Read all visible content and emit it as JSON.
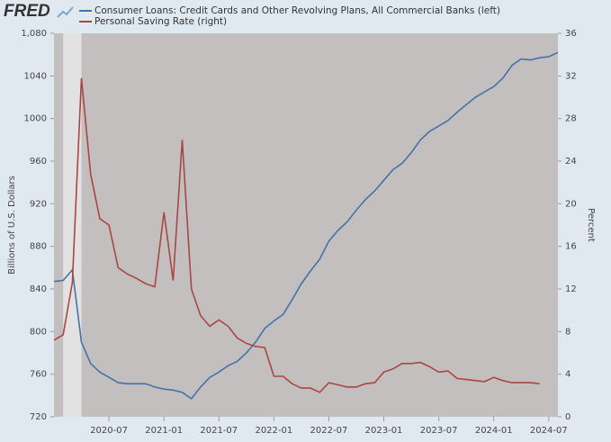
{
  "logo": "FRED",
  "chart_data": {
    "type": "line",
    "y_label": "Billions of U.S. Dollars",
    "y2_label": "Percent",
    "x": [
      "2020-01",
      "2020-02",
      "2020-03",
      "2020-04",
      "2020-05",
      "2020-06",
      "2020-07",
      "2020-08",
      "2020-09",
      "2020-10",
      "2020-11",
      "2020-12",
      "2021-01",
      "2021-02",
      "2021-03",
      "2021-04",
      "2021-05",
      "2021-06",
      "2021-07",
      "2021-08",
      "2021-09",
      "2021-10",
      "2021-11",
      "2021-12",
      "2022-01",
      "2022-02",
      "2022-03",
      "2022-04",
      "2022-05",
      "2022-06",
      "2022-07",
      "2022-08",
      "2022-09",
      "2022-10",
      "2022-11",
      "2022-12",
      "2023-01",
      "2023-02",
      "2023-03",
      "2023-04",
      "2023-05",
      "2023-06",
      "2023-07",
      "2023-08",
      "2023-09",
      "2023-10",
      "2023-11",
      "2023-12",
      "2024-01",
      "2024-02",
      "2024-03",
      "2024-04",
      "2024-05",
      "2024-06",
      "2024-07",
      "2024-08"
    ],
    "series": [
      {
        "name": "Consumer Loans: Credit Cards and Other Revolving Plans, All Commercial Banks (left)",
        "color": "#4572a7",
        "axis": "y",
        "values": [
          847,
          848,
          858,
          790,
          770,
          762,
          757,
          752,
          751,
          751,
          751,
          748,
          746,
          745,
          743,
          737,
          748,
          757,
          762,
          768,
          772,
          780,
          790,
          803,
          810,
          816,
          830,
          845,
          857,
          868,
          885,
          895,
          903,
          914,
          924,
          932,
          942,
          952,
          958,
          968,
          980,
          988,
          993,
          998,
          1006,
          1013,
          1020,
          1025,
          1030,
          1038,
          1050,
          1056,
          1055,
          1057,
          1058,
          1062
        ]
      },
      {
        "name": "Personal Saving Rate (right)",
        "color": "#aa4643",
        "axis": "y2",
        "values": [
          7.2,
          7.7,
          12.6,
          31.8,
          22.8,
          18.6,
          18.0,
          14.0,
          13.4,
          13.0,
          12.5,
          12.2,
          19.2,
          12.8,
          26.0,
          12.0,
          9.5,
          8.5,
          9.1,
          8.5,
          7.4,
          6.9,
          6.6,
          6.5,
          3.8,
          3.8,
          3.1,
          2.7,
          2.7,
          2.3,
          3.2,
          3.0,
          2.8,
          2.8,
          3.1,
          3.2,
          4.2,
          4.5,
          5.0,
          5.0,
          5.1,
          4.7,
          4.2,
          4.3,
          3.6,
          3.5,
          3.4,
          3.3,
          3.7,
          3.4,
          3.2,
          3.2,
          3.2,
          3.1,
          null,
          null
        ]
      }
    ],
    "xlim": [
      "2020-01",
      "2024-08"
    ],
    "xticks": [
      "2020-07",
      "2021-01",
      "2021-07",
      "2022-01",
      "2022-07",
      "2023-01",
      "2023-07",
      "2024-01",
      "2024-07"
    ],
    "ylim": [
      720,
      1080
    ],
    "yticks": [
      720,
      760,
      800,
      840,
      880,
      920,
      960,
      1000,
      1040,
      {
        "value": 1080,
        "label": "1,080"
      }
    ],
    "y2lim": [
      0,
      36
    ],
    "y2ticks": [
      0,
      4,
      8,
      12,
      16,
      20,
      24,
      28,
      32,
      36
    ],
    "recessions": [
      {
        "start": "2020-02",
        "end": "2020-04"
      }
    ],
    "plot_color": "#c3bfbf",
    "recession_color": "#e2e2e2"
  }
}
